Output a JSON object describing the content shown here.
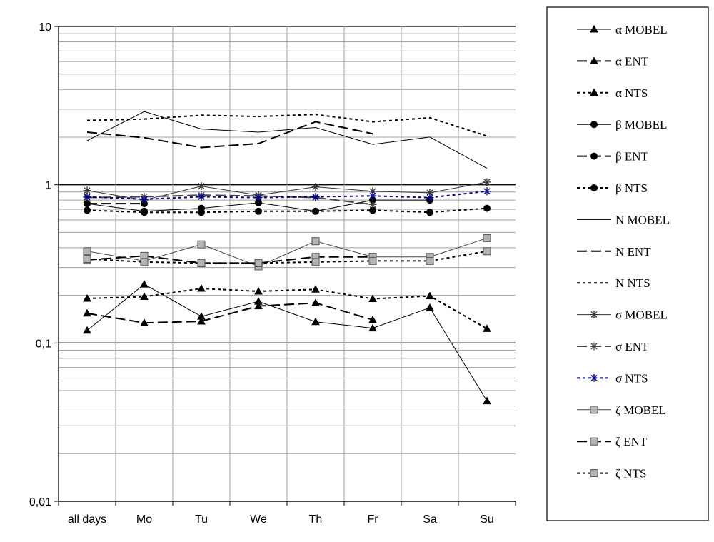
{
  "chart_data": {
    "type": "line",
    "y_scale": "log",
    "ylim": [
      0.01,
      10
    ],
    "y_ticks": [
      "10",
      "1",
      "0,1",
      "0,01"
    ],
    "grid": true,
    "legend_position": "right",
    "categories": [
      "all days",
      "Mo",
      "Tu",
      "We",
      "Th",
      "Fr",
      "Sa",
      "Su"
    ],
    "series": [
      {
        "name": "α MOBEL",
        "values": [
          0.12,
          0.235,
          0.147,
          0.183,
          0.136,
          0.124,
          0.167,
          0.043
        ],
        "color": "#000000",
        "dash": "solid",
        "width": 1,
        "marker": "triangle"
      },
      {
        "name": "α ENT",
        "values": [
          0.154,
          0.134,
          0.137,
          0.171,
          0.179,
          0.14,
          null,
          null
        ],
        "color": "#000000",
        "dash": "longdash",
        "width": 2,
        "marker": "triangle"
      },
      {
        "name": "α NTS",
        "values": [
          0.191,
          0.196,
          0.221,
          0.212,
          0.218,
          0.19,
          0.198,
          0.123
        ],
        "color": "#000000",
        "dash": "dotted",
        "width": 2,
        "marker": "triangle"
      },
      {
        "name": "β MOBEL",
        "values": [
          0.76,
          0.68,
          0.71,
          0.77,
          0.68,
          0.8,
          0.8,
          null
        ],
        "color": "#000000",
        "dash": "solid",
        "width": 1,
        "marker": "circle"
      },
      {
        "name": "β ENT",
        "values": [
          0.76,
          0.76,
          null,
          null,
          null,
          null,
          null,
          null
        ],
        "color": "#000000",
        "dash": "longdash",
        "width": 2,
        "marker": "circle"
      },
      {
        "name": "β NTS",
        "values": [
          0.69,
          0.67,
          0.67,
          0.68,
          0.68,
          0.69,
          0.67,
          0.71
        ],
        "color": "#000000",
        "dash": "dotted",
        "width": 2,
        "marker": "circle"
      },
      {
        "name": "N MOBEL",
        "values": [
          1.9,
          2.9,
          2.25,
          2.15,
          2.3,
          1.8,
          2.0,
          1.27
        ],
        "color": "#000000",
        "dash": "solid",
        "width": 1,
        "marker": "none"
      },
      {
        "name": "N ENT",
        "values": [
          2.15,
          1.98,
          1.72,
          1.82,
          2.5,
          2.1,
          null,
          null
        ],
        "color": "#000000",
        "dash": "longdash",
        "width": 2,
        "marker": "none"
      },
      {
        "name": "N NTS",
        "values": [
          2.55,
          2.6,
          2.75,
          2.7,
          2.78,
          2.5,
          2.65,
          2.03
        ],
        "color": "#000000",
        "dash": "dotted",
        "width": 2,
        "marker": "none"
      },
      {
        "name": "σ MOBEL",
        "values": [
          0.92,
          0.8,
          0.98,
          0.86,
          0.97,
          0.91,
          0.89,
          1.04
        ],
        "color": "#333333",
        "dash": "solid",
        "width": 1,
        "marker": "star"
      },
      {
        "name": "σ ENT",
        "values": [
          0.83,
          0.84,
          0.86,
          0.85,
          0.83,
          0.75,
          null,
          null
        ],
        "color": "#444444",
        "dash": "longdash",
        "width": 2,
        "marker": "star"
      },
      {
        "name": "σ NTS",
        "values": [
          0.84,
          0.81,
          0.84,
          0.83,
          0.84,
          0.85,
          0.83,
          0.91
        ],
        "color": "#00008b",
        "dash": "dotted",
        "width": 2,
        "marker": "star"
      },
      {
        "name": "ζ MOBEL",
        "values": [
          0.38,
          0.33,
          0.42,
          0.305,
          0.44,
          0.35,
          0.35,
          0.46
        ],
        "color": "#444444",
        "dash": "solid",
        "width": 1,
        "marker": "square"
      },
      {
        "name": "ζ ENT",
        "values": [
          0.335,
          0.355,
          0.32,
          0.32,
          0.35,
          0.35,
          null,
          null
        ],
        "color": "#000000",
        "dash": "longdash",
        "width": 2,
        "marker": "square"
      },
      {
        "name": "ζ NTS",
        "values": [
          0.34,
          0.325,
          0.32,
          0.32,
          0.325,
          0.33,
          0.33,
          0.38
        ],
        "color": "#000000",
        "dash": "dotted",
        "width": 2,
        "marker": "square"
      }
    ]
  }
}
